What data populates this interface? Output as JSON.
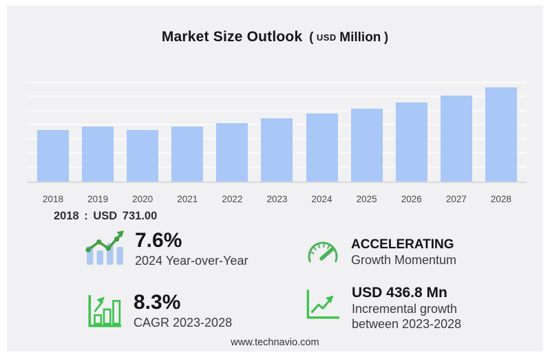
{
  "title": {
    "main": "Market Size Outlook",
    "paren_open": "(",
    "unit_small": "USD",
    "unit": "Million",
    "paren_close": ")"
  },
  "callout": {
    "text": "2018 : USD 731.00"
  },
  "chart_data": {
    "type": "bar",
    "title": "Market Size Outlook (USD Million)",
    "categories": [
      "2018",
      "2019",
      "2020",
      "2021",
      "2022",
      "2023",
      "2024",
      "2025",
      "2026",
      "2027",
      "2028"
    ],
    "values": [
      731,
      777,
      734,
      777,
      834,
      898.2,
      966.5,
      1037,
      1124,
      1224,
      1335
    ],
    "xlabel": "",
    "ylabel": "",
    "ylim": [
      0,
      1600
    ],
    "gridline_step": 200,
    "grid": "horizontal, unlabeled",
    "legend": "none",
    "bar_color": "#a9c7f7",
    "annotation": "2018 : USD 731.00"
  },
  "stats": [
    {
      "icon": "bars-trend-up-icon",
      "value": "7.6%",
      "label": "2024 Year-over-Year"
    },
    {
      "icon": "gauge-icon",
      "value": "ACCELERATING",
      "label": "Growth Momentum"
    },
    {
      "icon": "bar-chart-growth-icon",
      "value": "8.3%",
      "label": "CAGR 2023-2028"
    },
    {
      "icon": "line-chart-growth-icon",
      "value": "USD 436.8 Mn",
      "label": "Incremental growth",
      "label2": "between 2023-2028"
    }
  ],
  "footer": {
    "url": "www.technavio.com"
  },
  "colors": {
    "panel_bg": "#f1f1f3",
    "bar_fill": "#a9c7f7",
    "icon_green": "#43a047",
    "outline_green": "#3fc24f",
    "text_dark": "#141414"
  }
}
